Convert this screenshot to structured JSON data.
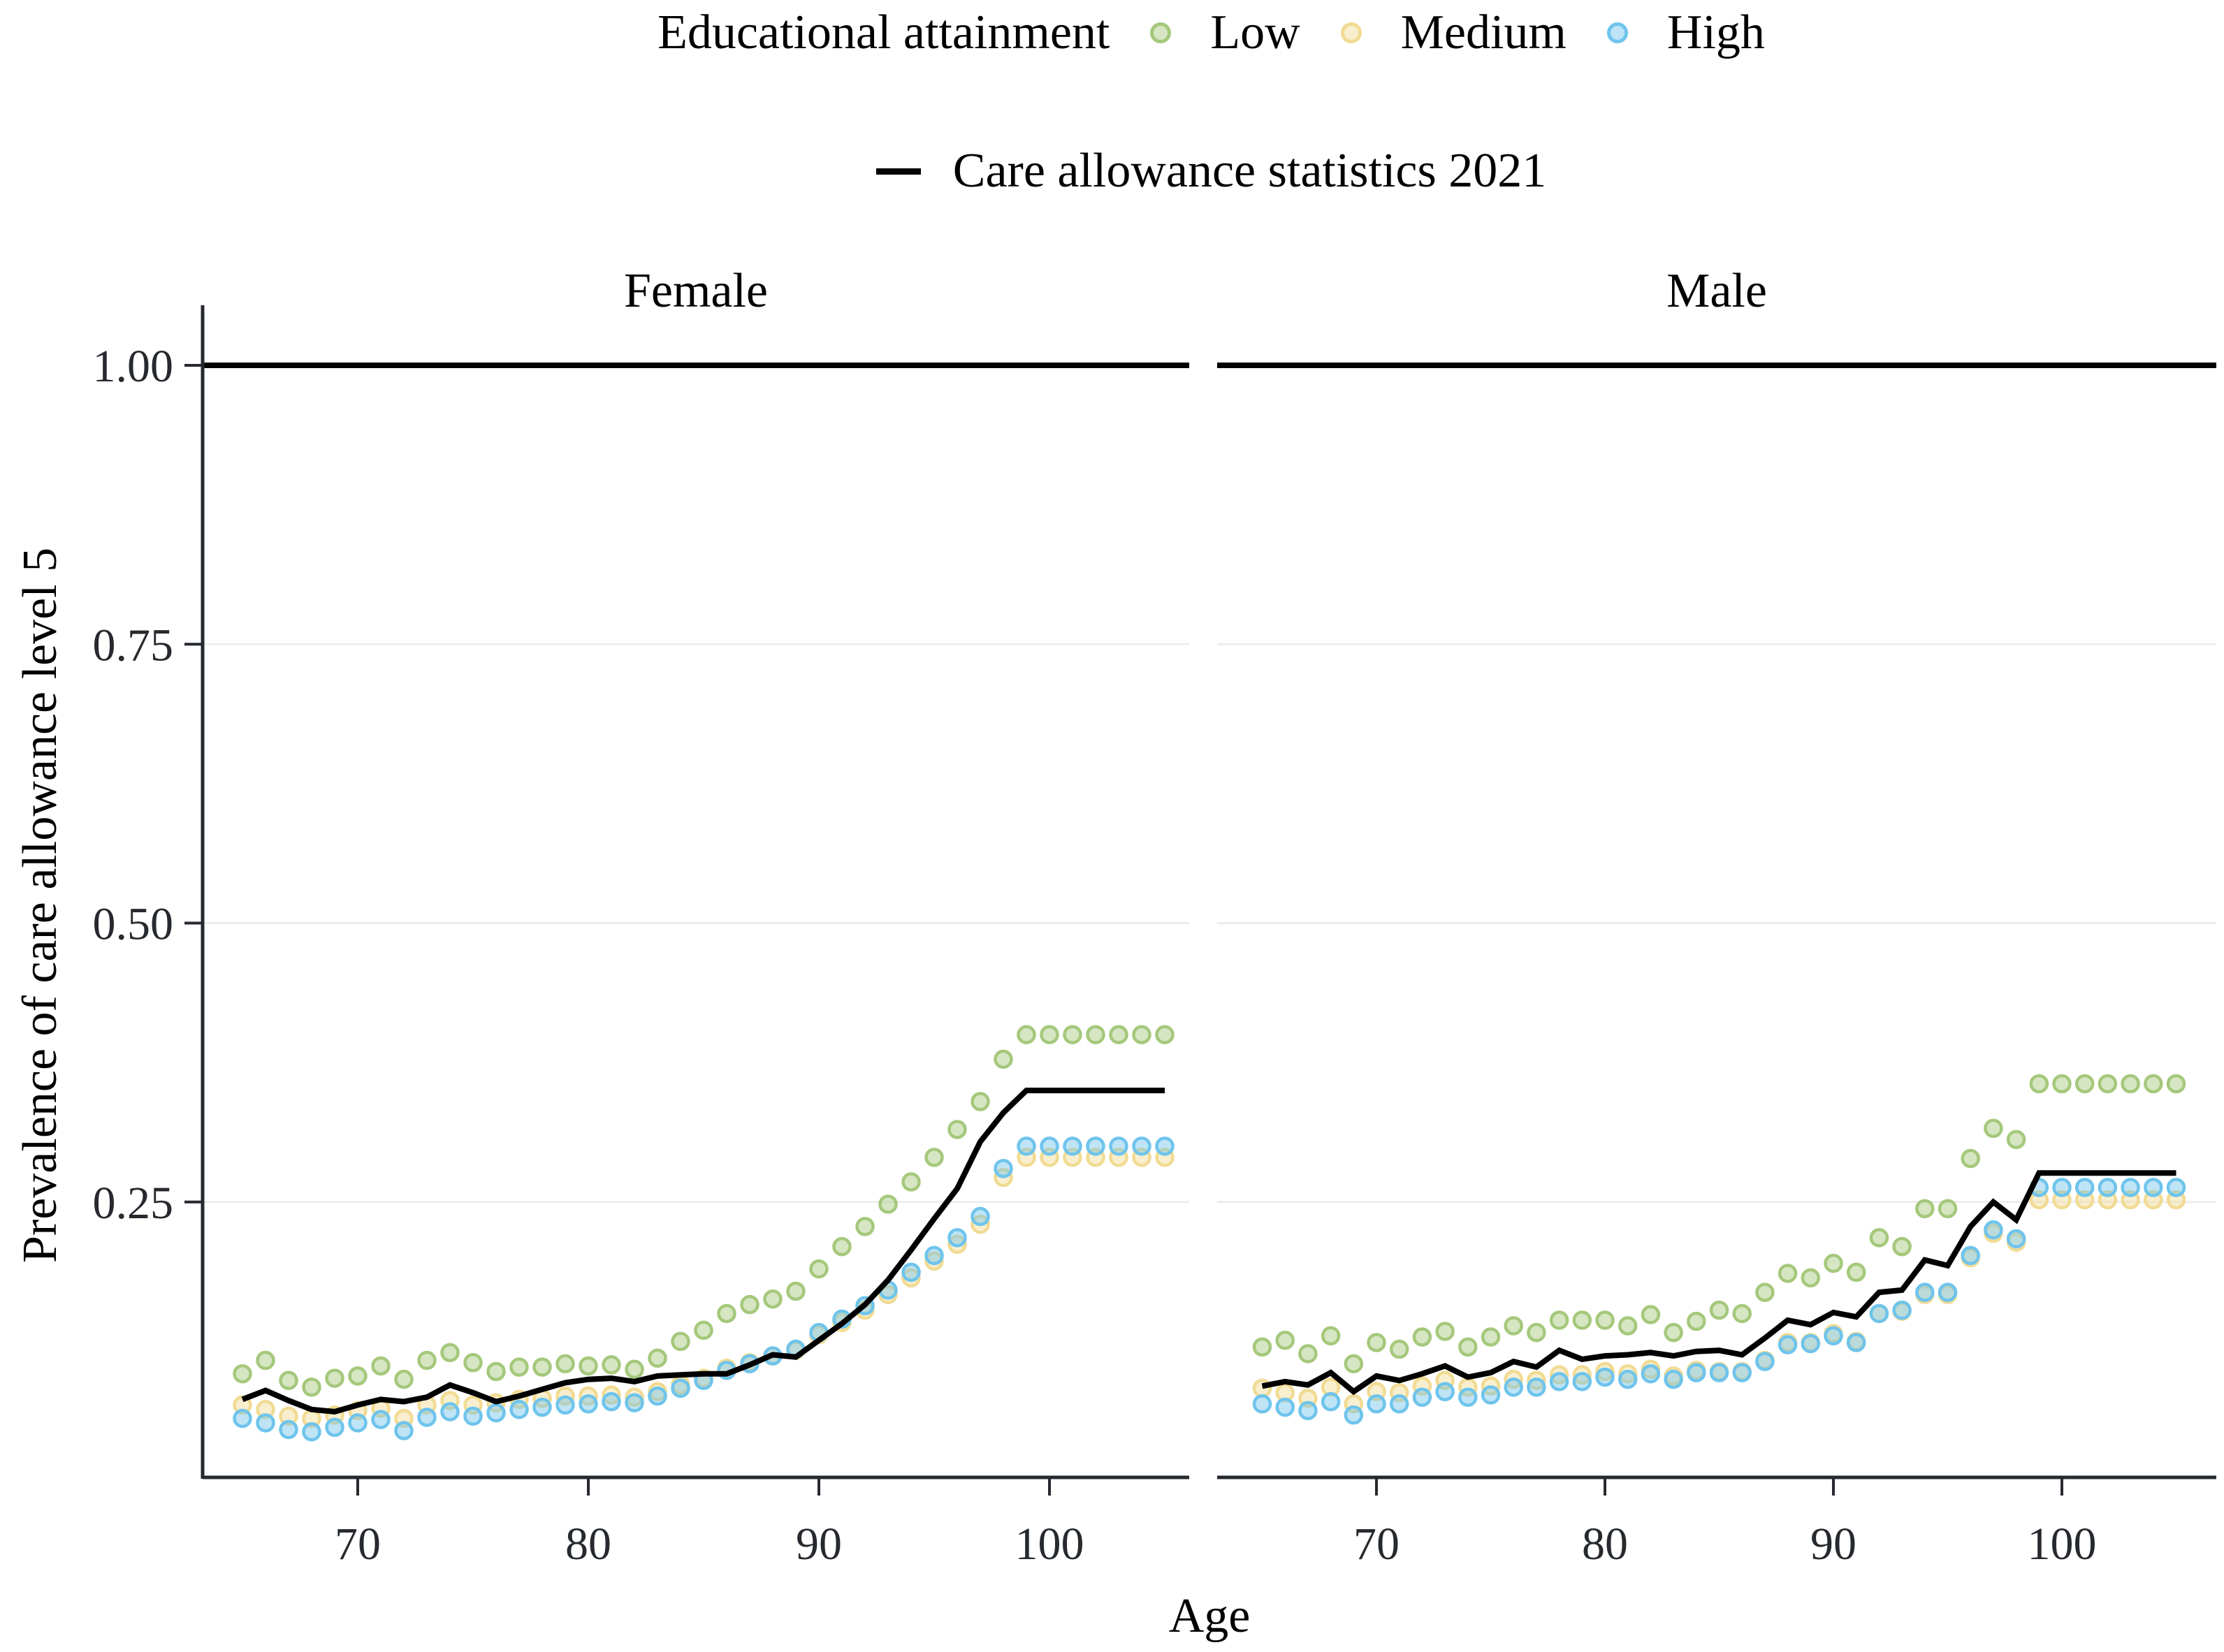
{
  "legend": {
    "title": "Educational attainment",
    "items": [
      {
        "name": "low",
        "label": "Low",
        "color": "#a5c87b"
      },
      {
        "name": "medium",
        "label": "Medium",
        "color": "#f1db93"
      },
      {
        "name": "high",
        "label": "High",
        "color": "#6ec4ec"
      }
    ],
    "line_item": {
      "label": "Care allowance statistics 2021",
      "color": "#000000"
    }
  },
  "axes": {
    "x_label": "Age",
    "y_label": "Prevalence of care allowance level 5",
    "x_tick_labels": [
      "70",
      "80",
      "90",
      "100"
    ],
    "y_tick_labels": [
      "0.25",
      "0.50",
      "0.75",
      "1.00"
    ]
  },
  "facet_labels": {
    "female": "Female",
    "male": "Male"
  },
  "style": {
    "axis_color": "#262a2e",
    "grid_color": "#ededed",
    "reference_line_color": "#000000",
    "point_fill_opacity": 0.45,
    "background": "#ffffff"
  },
  "chart_data": {
    "type": "scatter",
    "title": "",
    "xlabel": "Age",
    "ylabel": "Prevalence of care allowance level 5",
    "x_ticks": [
      70,
      80,
      90,
      100
    ],
    "y_ticks": [
      0.25,
      0.5,
      0.75,
      1.0
    ],
    "xlim": [
      63,
      107
    ],
    "ylim": [
      0,
      1.05
    ],
    "grid": "horizontal-only",
    "legend_position": "top-center",
    "reference_line_y": 1.0,
    "ages": [
      65,
      66,
      67,
      68,
      69,
      70,
      71,
      72,
      73,
      74,
      75,
      76,
      77,
      78,
      79,
      80,
      81,
      82,
      83,
      84,
      85,
      86,
      87,
      88,
      89,
      90,
      91,
      92,
      93,
      94,
      95,
      96,
      97,
      98,
      99,
      100,
      101,
      102,
      103,
      104,
      105
    ],
    "facets": [
      {
        "label": "Female",
        "series": [
          {
            "name": "Low",
            "kind": "points",
            "color": "#a5c87b",
            "values": [
              0.096,
              0.108,
              0.09,
              0.084,
              0.092,
              0.094,
              0.103,
              0.091,
              0.108,
              0.115,
              0.106,
              0.098,
              0.102,
              0.102,
              0.105,
              0.103,
              0.104,
              0.1,
              0.11,
              0.125,
              0.135,
              0.15,
              0.158,
              0.163,
              0.17,
              0.19,
              0.21,
              0.228,
              0.248,
              0.268,
              0.29,
              0.315,
              0.34,
              0.378,
              0.4,
              0.4,
              0.4,
              0.4,
              0.4,
              0.4,
              0.4
            ]
          },
          {
            "name": "Medium",
            "kind": "points",
            "color": "#f1db93",
            "values": [
              0.068,
              0.064,
              0.058,
              0.056,
              0.059,
              0.063,
              0.065,
              0.056,
              0.068,
              0.072,
              0.068,
              0.07,
              0.073,
              0.074,
              0.076,
              0.076,
              0.077,
              0.075,
              0.08,
              0.086,
              0.092,
              0.101,
              0.106,
              0.112,
              0.117,
              0.131,
              0.142,
              0.153,
              0.167,
              0.182,
              0.197,
              0.212,
              0.23,
              0.272,
              0.29,
              0.29,
              0.29,
              0.29,
              0.29,
              0.29,
              0.29
            ]
          },
          {
            "name": "High",
            "kind": "points",
            "color": "#6ec4ec",
            "values": [
              0.056,
              0.052,
              0.046,
              0.044,
              0.048,
              0.052,
              0.055,
              0.045,
              0.057,
              0.062,
              0.058,
              0.061,
              0.064,
              0.066,
              0.068,
              0.069,
              0.071,
              0.07,
              0.076,
              0.083,
              0.09,
              0.099,
              0.105,
              0.112,
              0.118,
              0.133,
              0.145,
              0.157,
              0.171,
              0.187,
              0.202,
              0.218,
              0.237,
              0.28,
              0.3,
              0.3,
              0.3,
              0.3,
              0.3,
              0.3,
              0.3
            ]
          },
          {
            "name": "Care allowance statistics 2021",
            "kind": "line",
            "color": "#000000",
            "values": [
              0.073,
              0.081,
              0.072,
              0.064,
              0.062,
              0.068,
              0.073,
              0.071,
              0.075,
              0.086,
              0.079,
              0.071,
              0.076,
              0.082,
              0.088,
              0.091,
              0.092,
              0.089,
              0.094,
              0.095,
              0.096,
              0.096,
              0.104,
              0.113,
              0.111,
              0.126,
              0.141,
              0.158,
              0.18,
              0.207,
              0.235,
              0.262,
              0.304,
              0.33,
              0.35,
              0.35,
              0.35,
              0.35,
              0.35,
              0.35,
              0.35
            ]
          }
        ]
      },
      {
        "label": "Male",
        "series": [
          {
            "name": "Low",
            "kind": "points",
            "color": "#a5c87b",
            "values": [
              0.12,
              0.126,
              0.114,
              0.13,
              0.105,
              0.124,
              0.118,
              0.129,
              0.134,
              0.12,
              0.129,
              0.139,
              0.133,
              0.144,
              0.144,
              0.144,
              0.139,
              0.149,
              0.133,
              0.143,
              0.153,
              0.15,
              0.169,
              0.186,
              0.182,
              0.195,
              0.187,
              0.218,
              0.21,
              0.244,
              0.244,
              0.289,
              0.316,
              0.306,
              0.356,
              0.356,
              0.356,
              0.356,
              0.356,
              0.356,
              0.356
            ]
          },
          {
            "name": "Medium",
            "kind": "points",
            "color": "#f1db93",
            "values": [
              0.083,
              0.079,
              0.074,
              0.084,
              0.069,
              0.08,
              0.079,
              0.085,
              0.09,
              0.084,
              0.085,
              0.091,
              0.09,
              0.095,
              0.095,
              0.098,
              0.096,
              0.1,
              0.094,
              0.099,
              0.098,
              0.098,
              0.108,
              0.124,
              0.124,
              0.132,
              0.125,
              0.15,
              0.152,
              0.167,
              0.167,
              0.2,
              0.222,
              0.214,
              0.252,
              0.252,
              0.252,
              0.252,
              0.252,
              0.252,
              0.252
            ]
          },
          {
            "name": "High",
            "kind": "points",
            "color": "#6ec4ec",
            "values": [
              0.069,
              0.066,
              0.063,
              0.071,
              0.059,
              0.069,
              0.069,
              0.075,
              0.08,
              0.075,
              0.077,
              0.084,
              0.084,
              0.089,
              0.089,
              0.093,
              0.091,
              0.096,
              0.091,
              0.097,
              0.097,
              0.097,
              0.107,
              0.122,
              0.123,
              0.13,
              0.124,
              0.15,
              0.153,
              0.169,
              0.169,
              0.202,
              0.225,
              0.217,
              0.263,
              0.263,
              0.263,
              0.263,
              0.263,
              0.263,
              0.263
            ]
          },
          {
            "name": "Care allowance statistics 2021",
            "kind": "line",
            "color": "#000000",
            "values": [
              0.085,
              0.089,
              0.086,
              0.097,
              0.08,
              0.094,
              0.09,
              0.096,
              0.103,
              0.093,
              0.097,
              0.107,
              0.102,
              0.117,
              0.109,
              0.112,
              0.113,
              0.115,
              0.112,
              0.116,
              0.117,
              0.113,
              0.128,
              0.144,
              0.14,
              0.151,
              0.147,
              0.169,
              0.171,
              0.198,
              0.193,
              0.228,
              0.25,
              0.234,
              0.276,
              0.276,
              0.276,
              0.276,
              0.276,
              0.276,
              0.276
            ]
          }
        ]
      }
    ]
  }
}
